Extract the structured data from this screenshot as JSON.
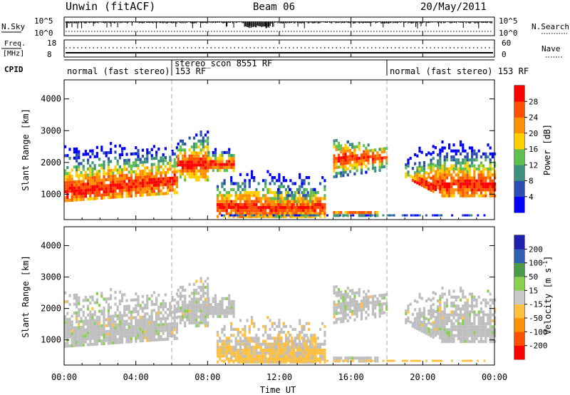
{
  "header": {
    "left": "Unwin (fitACF)",
    "center": "Beam 06",
    "right": "20/May/2011"
  },
  "strips": {
    "sky": {
      "label": "N.Sky",
      "ticks_left": [
        "10^5",
        "10^0"
      ],
      "ticks_right": [
        "10^5",
        "10^0"
      ],
      "right_label": "N.Search"
    },
    "freq": {
      "label_line1": "Freq.",
      "label_line2": "[MHz]",
      "ticks_left": [
        "18",
        "8"
      ],
      "ticks_right": [
        "60",
        "0"
      ],
      "right_label": "Nave"
    },
    "cpid": {
      "label": "CPID"
    }
  },
  "cpid_segments": [
    {
      "start_hour": 0,
      "end_hour": 6,
      "text": "normal (fast stereo) 153 RF"
    },
    {
      "start_hour": 6,
      "end_hour": 18,
      "text": "stereo_scon 8551 RF"
    },
    {
      "start_hour": 18,
      "end_hour": 24,
      "text": "normal (fast stereo) 153 RF"
    }
  ],
  "colors": {
    "power_scale": [
      "#0000ff",
      "#2a4fb0",
      "#3f8f7f",
      "#5fbf4f",
      "#ffd000",
      "#ff9000",
      "#ff5000",
      "#ff0000"
    ],
    "velocity_scale": [
      "#2020b0",
      "#2f5fb0",
      "#4a9a4a",
      "#8ad050",
      "#c8c8c8",
      "#ffc040",
      "#ff9000",
      "#ff5000",
      "#ff0000"
    ],
    "ground_scatter": "#bebebe"
  },
  "chart_data": [
    {
      "type": "heatmap",
      "name": "power",
      "ylabel": "Slant Range [km]",
      "yticks": [
        "1000",
        "2000",
        "3000",
        "4000"
      ],
      "ylim": [
        200,
        4600
      ],
      "xlim": [
        0,
        24
      ],
      "colorbar": {
        "label": "Power [dB]",
        "ticks": [
          "4",
          "8",
          "12",
          "16",
          "20",
          "24",
          "28"
        ],
        "range": [
          0,
          32
        ]
      }
    },
    {
      "type": "heatmap",
      "name": "velocity",
      "ylabel": "Slant Range [km]",
      "yticks": [
        "1000",
        "2000",
        "3000",
        "4000"
      ],
      "ylim": [
        200,
        4600
      ],
      "xlim": [
        0,
        24
      ],
      "xlabel": "Time UT",
      "xticks": [
        "00:00",
        "04:00",
        "08:00",
        "12:00",
        "16:00",
        "20:00",
        "00:00"
      ],
      "colorbar": {
        "label": "Velocity [m s",
        "label_sup": "-1",
        "label_end": "]",
        "ticks": [
          "200",
          "100",
          "50",
          "15",
          "-15",
          "-50",
          "-100",
          "-200"
        ]
      }
    }
  ]
}
